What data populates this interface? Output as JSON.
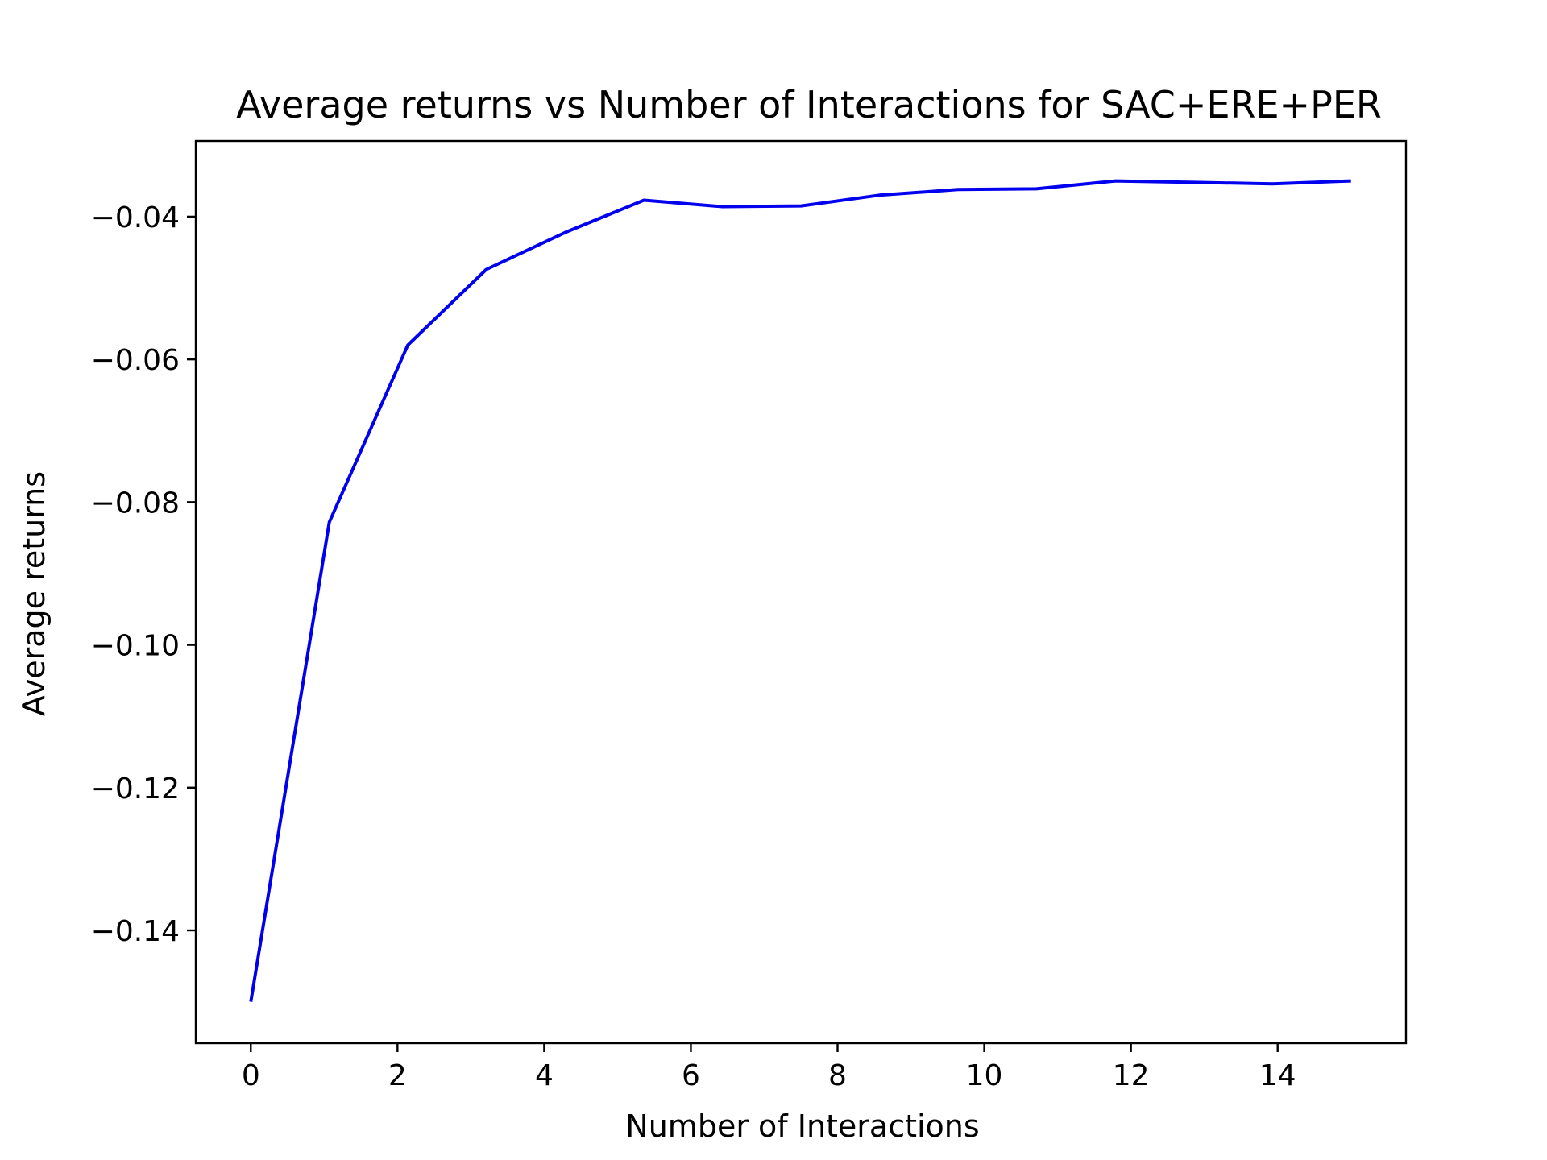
{
  "chart_data": {
    "type": "line",
    "title": "Average returns vs Number of Interactions for SAC+ERE+PER",
    "xlabel": "Number of Interactions",
    "ylabel": "Average returns",
    "xlim": [
      -0.75,
      15.75
    ],
    "ylim": [
      -0.1558,
      -0.0294
    ],
    "xticks": [
      0,
      2,
      4,
      6,
      8,
      10,
      12,
      14
    ],
    "xtick_labels": [
      "0",
      "2",
      "4",
      "6",
      "8",
      "10",
      "12",
      "14"
    ],
    "yticks": [
      -0.04,
      -0.06,
      -0.08,
      -0.1,
      -0.12,
      -0.14
    ],
    "ytick_labels": [
      "−0.04",
      "−0.06",
      "−0.08",
      "−0.10",
      "−0.12",
      "−0.14"
    ],
    "grid": false,
    "legend": "none",
    "series": [
      {
        "color": "#0000ee",
        "x": [
          0,
          1.07,
          2.14,
          3.21,
          4.29,
          5.36,
          6.43,
          7.5,
          8.57,
          9.64,
          10.71,
          11.79,
          12.86,
          13.93,
          15
        ],
        "y": [
          -0.15,
          -0.0828,
          -0.058,
          -0.0474,
          -0.0422,
          -0.0377,
          -0.0386,
          -0.0385,
          -0.037,
          -0.0362,
          -0.0361,
          -0.035,
          -0.0352,
          -0.0354,
          -0.035
        ]
      }
    ]
  }
}
